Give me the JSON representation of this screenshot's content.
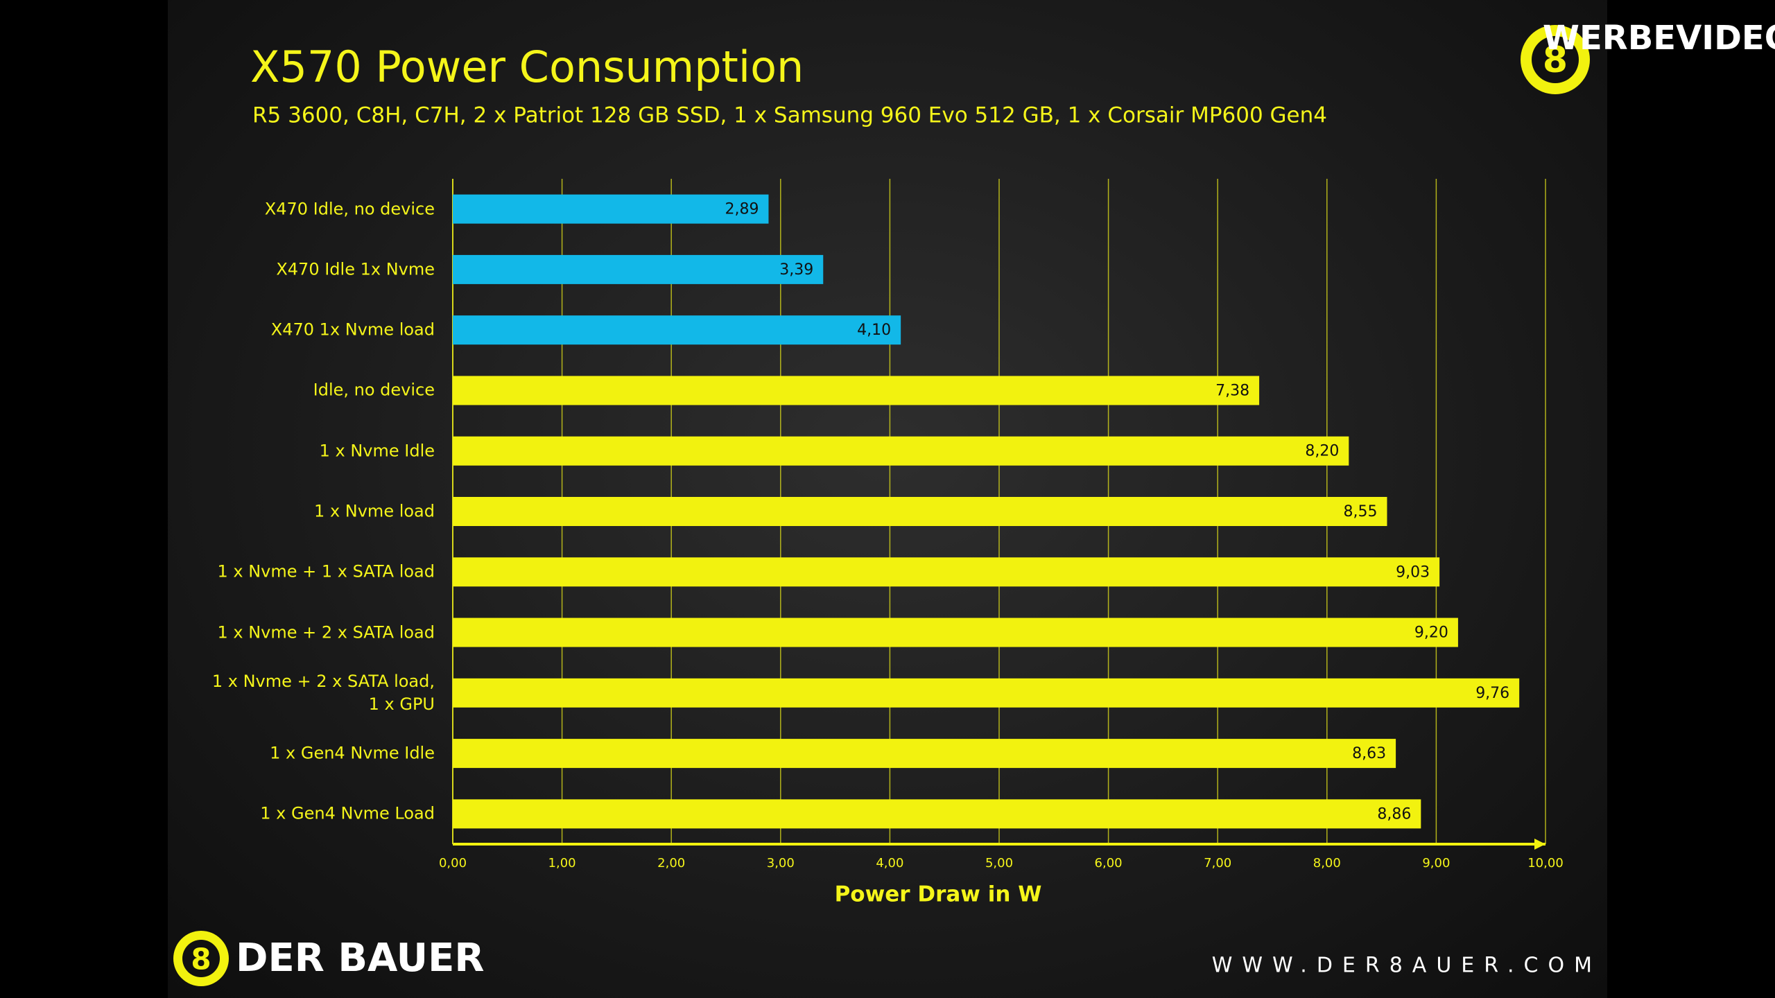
{
  "chart_data": {
    "type": "hbar",
    "title": "X570 Power Consumption",
    "subtitle": "R5 3600, C8H, C7H, 2 x Patriot 128 GB SSD, 1 x Samsung 960 Evo 512 GB, 1 x Corsair MP600 Gen4",
    "x_label": "Power Draw in W",
    "categories": [
      "X470 Idle, no device",
      "X470 Idle 1x Nvme",
      "X470 1x Nvme load",
      "Idle, no device",
      "1 x Nvme Idle",
      "1 x Nvme load",
      "1 x Nvme + 1 x SATA load",
      "1 x Nvme + 2 x SATA load",
      "1 x Nvme + 2 x SATA load, 1 x GPU",
      "1 x Gen4 Nvme Idle",
      "1 x Gen4 Nvme Load"
    ],
    "values": [
      2.89,
      3.39,
      4.1,
      7.38,
      8.2,
      8.55,
      9.03,
      9.2,
      9.76,
      8.63,
      8.86
    ],
    "value_labels": [
      "2,89",
      "3,39",
      "4,10",
      "7,38",
      "8,20",
      "8,55",
      "9,03",
      "9,20",
      "9,76",
      "8,63",
      "8,86"
    ],
    "colors": [
      "#12b8e8",
      "#12b8e8",
      "#12b8e8",
      "#f2f20f",
      "#f2f20f",
      "#f2f20f",
      "#f2f20f",
      "#f2f20f",
      "#f2f20f",
      "#f2f20f",
      "#f2f20f"
    ],
    "xlim": [
      0,
      10
    ],
    "xticks": [
      {
        "value": 0,
        "label": "0,00"
      },
      {
        "value": 1,
        "label": "1,00"
      },
      {
        "value": 2,
        "label": "2,00"
      },
      {
        "value": 3,
        "label": "3,00"
      },
      {
        "value": 4,
        "label": "4,00"
      },
      {
        "value": 5,
        "label": "5,00"
      },
      {
        "value": 6,
        "label": "6,00"
      },
      {
        "value": 7,
        "label": "7,00"
      },
      {
        "value": 8,
        "label": "8,00"
      },
      {
        "value": 9,
        "label": "9,00"
      },
      {
        "value": 10,
        "label": "10,00"
      }
    ],
    "grid": true
  },
  "branding": {
    "watermark": "WERBEVIDEO",
    "logo_text": "DER BAUER",
    "url": "WWW.DER8AUER.COM"
  }
}
